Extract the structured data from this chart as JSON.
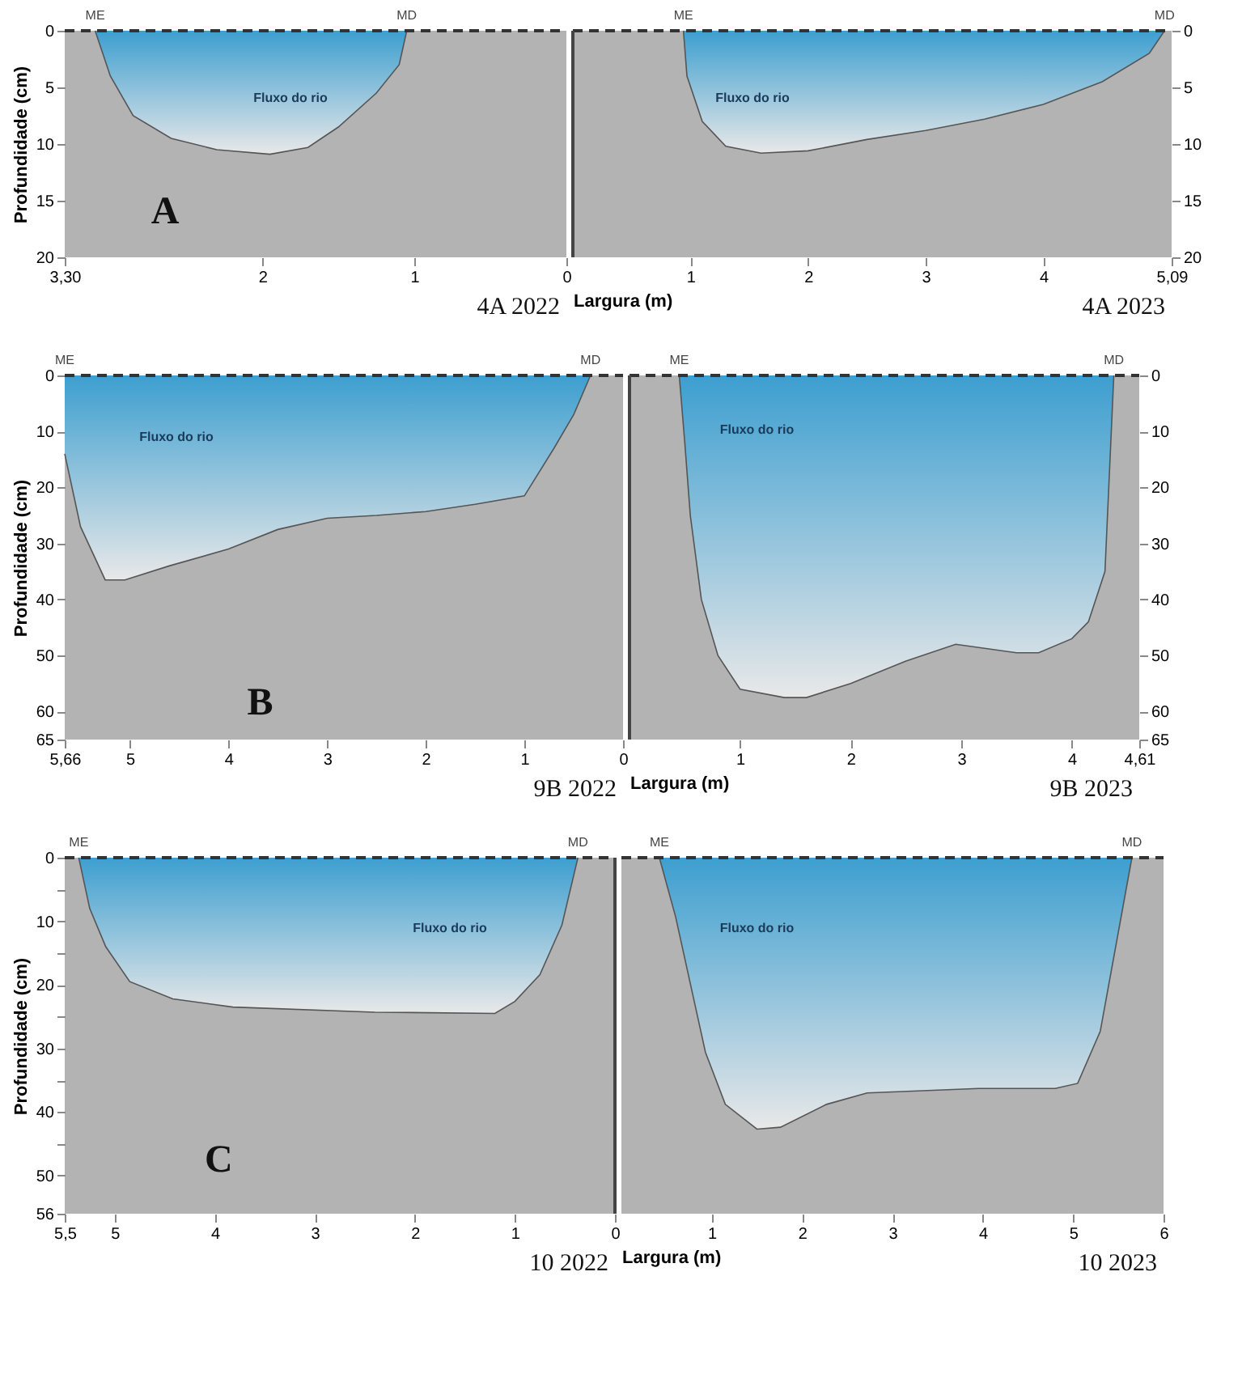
{
  "chart_data": [
    {
      "type": "area",
      "ylabel": "Profundidade (cm)",
      "xlim": [
        3.3,
        0
      ],
      "xticks": [
        {
          "value": 3.3,
          "label": "3,30"
        },
        2,
        1,
        0
      ],
      "ylim": [
        20,
        0
      ],
      "yticks": [
        0,
        5,
        10,
        15,
        20
      ],
      "grid": false,
      "x": [
        3.1,
        3.0,
        2.85,
        2.6,
        2.3,
        1.95,
        1.7,
        1.5,
        1.25,
        1.1,
        1.05
      ],
      "series": [
        {
          "color": "#0a96dc",
          "values": [
            0,
            4,
            7.5,
            9.5,
            10.5,
            10.9,
            10.3,
            8.5,
            5.5,
            3,
            0
          ]
        }
      ],
      "ref_lines": [
        {
          "axis": "y",
          "value": 0,
          "line_style": "dashed",
          "color": "#333333"
        }
      ],
      "annotations": [
        "ME",
        "MD",
        "4A 2022",
        "Fluxo do rio",
        "A"
      ]
    },
    {
      "type": "area",
      "xlabel": "Largura (m)",
      "xlim": [
        0,
        5.09
      ],
      "xticks": [
        1,
        2,
        3,
        4,
        {
          "value": 5.09,
          "label": "5,09"
        }
      ],
      "ylim": [
        20,
        0
      ],
      "yticks": [
        0,
        5,
        10,
        15,
        20
      ],
      "grid": false,
      "x": [
        0.94,
        0.97,
        1.1,
        1.3,
        1.6,
        2.0,
        2.5,
        3.0,
        3.5,
        4.0,
        4.5,
        4.9,
        5.03
      ],
      "series": [
        {
          "color": "#0a96dc",
          "values": [
            0,
            4,
            8,
            10.2,
            10.8,
            10.6,
            9.6,
            8.8,
            7.8,
            6.5,
            4.5,
            2,
            0
          ]
        }
      ],
      "ref_lines": [
        {
          "axis": "y",
          "value": 0,
          "line_style": "dashed",
          "color": "#333333"
        },
        {
          "axis": "x",
          "value": 0,
          "line_style": "solid",
          "color": "#444444"
        }
      ],
      "annotations": [
        "ME",
        "MD",
        "4A 2023",
        "Fluxo do rio"
      ]
    },
    {
      "type": "area",
      "ylabel": "Profundidade (cm)",
      "xlim": [
        5.66,
        0
      ],
      "xticks": [
        {
          "value": 5.66,
          "label": "5,66"
        },
        5,
        4,
        3,
        2,
        1,
        0
      ],
      "ylim": [
        65,
        0
      ],
      "yticks": [
        0,
        10,
        20,
        30,
        40,
        50,
        60,
        65
      ],
      "grid": false,
      "x": [
        5.66,
        5.5,
        5.25,
        5.05,
        4.6,
        4.0,
        3.5,
        3.0,
        2.5,
        2.0,
        1.5,
        1.0,
        0.7,
        0.5,
        0.33
      ],
      "series": [
        {
          "color": "#0a96dc",
          "values": [
            14,
            27,
            36.5,
            36.5,
            34,
            31,
            27.5,
            25.5,
            25,
            24.3,
            23,
            21.5,
            13,
            7,
            0
          ]
        }
      ],
      "ref_lines": [
        {
          "axis": "y",
          "value": 0,
          "line_style": "dashed",
          "color": "#333333"
        }
      ],
      "annotations": [
        "ME",
        "MD",
        "9B 2022",
        "Fluxo do rio",
        "B"
      ]
    },
    {
      "type": "area",
      "xlabel": "Largura (m)",
      "xlim": [
        0,
        4.61
      ],
      "xticks": [
        1,
        2,
        3,
        4,
        {
          "value": 4.61,
          "label": "4,61"
        }
      ],
      "ylim": [
        65,
        0
      ],
      "yticks": [
        0,
        10,
        20,
        30,
        40,
        50,
        60,
        65
      ],
      "grid": false,
      "x": [
        0.45,
        0.5,
        0.55,
        0.65,
        0.8,
        1.0,
        1.4,
        1.6,
        2.0,
        2.5,
        2.95,
        3.5,
        3.7,
        4.0,
        4.15,
        4.3,
        4.38
      ],
      "series": [
        {
          "color": "#0a96dc",
          "values": [
            0,
            12,
            25,
            40,
            50,
            56,
            57.5,
            57.5,
            55,
            51,
            48,
            49.5,
            49.5,
            47,
            44,
            35,
            0
          ]
        }
      ],
      "ref_lines": [
        {
          "axis": "y",
          "value": 0,
          "line_style": "dashed",
          "color": "#333333"
        },
        {
          "axis": "x",
          "value": 0,
          "line_style": "solid",
          "color": "#444444"
        }
      ],
      "annotations": [
        "ME",
        "MD",
        "9B 2023",
        "Fluxo do rio"
      ]
    },
    {
      "type": "area",
      "ylabel": "Profundidade (cm)",
      "xlim": [
        5.5,
        0
      ],
      "xticks": [
        {
          "value": 5.5,
          "label": "5,5"
        },
        5,
        4,
        3,
        2,
        1,
        0
      ],
      "ylim": [
        56,
        0
      ],
      "yticks": [
        0,
        {
          "value": 5,
          "label": null
        },
        10,
        {
          "value": 15,
          "label": null
        },
        20,
        {
          "value": 25,
          "label": null
        },
        30,
        {
          "value": 35,
          "label": null
        },
        40,
        {
          "value": 45,
          "label": null
        },
        50,
        56
      ],
      "grid": false,
      "x": [
        5.36,
        5.25,
        5.09,
        4.85,
        4.42,
        3.82,
        2.4,
        1.2,
        1.0,
        0.75,
        0.53,
        0.37
      ],
      "series": [
        {
          "color": "#0a96dc",
          "values": [
            0,
            8,
            14,
            19.5,
            22.2,
            23.5,
            24.3,
            24.5,
            22.6,
            18.4,
            10.6,
            0
          ]
        }
      ],
      "ref_lines": [
        {
          "axis": "y",
          "value": 0,
          "line_style": "dashed",
          "color": "#333333"
        },
        {
          "axis": "x",
          "value": 0,
          "line_style": "solid",
          "color": "#444444"
        }
      ],
      "annotations": [
        "ME",
        "MD",
        "10 2022",
        "Fluxo do rio",
        "C"
      ]
    },
    {
      "type": "area",
      "xlabel": "Largura (m)",
      "xlim": [
        0,
        6
      ],
      "xticks": [
        1,
        2,
        3,
        4,
        5,
        6
      ],
      "ylim": [
        56,
        0
      ],
      "yticks": [
        0,
        10,
        20,
        30,
        40,
        50,
        56
      ],
      "tick_labels": "x",
      "grid": false,
      "x": [
        0.42,
        0.6,
        0.93,
        1.15,
        1.5,
        1.76,
        2.27,
        2.72,
        3.95,
        4.8,
        5.05,
        5.3,
        5.65
      ],
      "series": [
        {
          "color": "#0a96dc",
          "values": [
            0,
            9.3,
            30.6,
            38.8,
            42.7,
            42.4,
            38.8,
            37,
            36.3,
            36.3,
            35.5,
            27.3,
            0
          ]
        }
      ],
      "ref_lines": [
        {
          "axis": "y",
          "value": 0,
          "line_style": "dashed",
          "color": "#333333"
        }
      ],
      "annotations": [
        "ME",
        "MD",
        "10 2023",
        "Fluxo do rio"
      ]
    }
  ]
}
